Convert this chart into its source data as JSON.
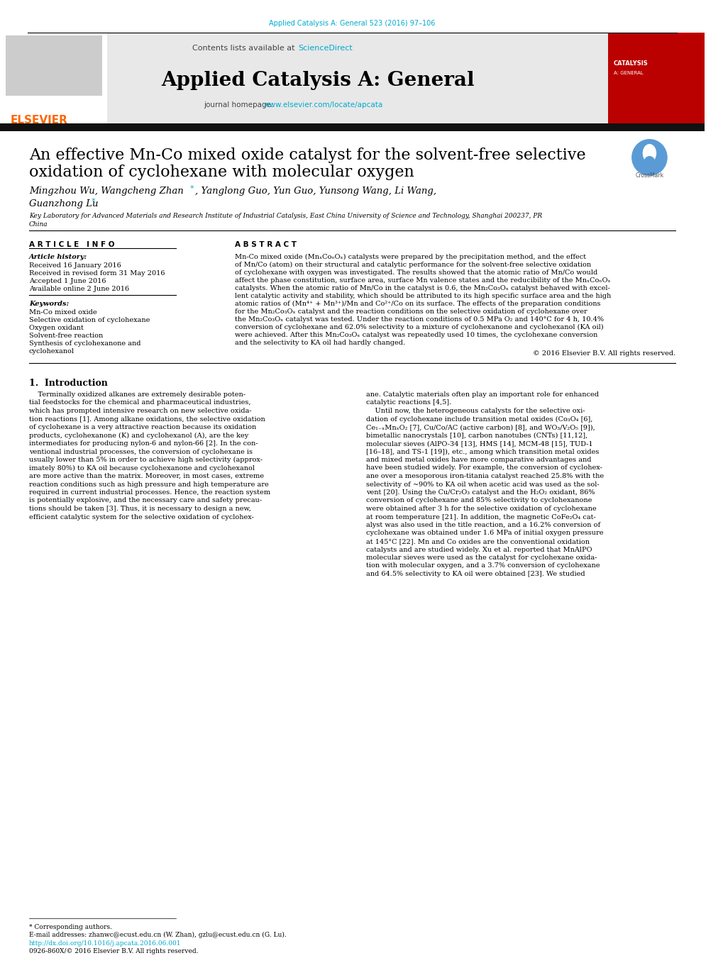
{
  "page_bg": "#ffffff",
  "top_citation": "Applied Catalysis A: General 523 (2016) 97–106",
  "top_citation_color": "#00aacc",
  "header_bg": "#e8e8e8",
  "header_text": "Contents lists available at ",
  "header_sciencedirect": "ScienceDirect",
  "header_sciencedirect_color": "#00aacc",
  "journal_title": "Applied Catalysis A: General",
  "journal_homepage_text": "journal homepage: ",
  "journal_homepage_url": "www.elsevier.com/locate/apcata",
  "journal_homepage_url_color": "#00aacc",
  "elsevier_color": "#ff6600",
  "separator_color": "#1a1a1a",
  "article_title_line1": "An effective Mn-Co mixed oxide catalyst for the solvent-free selective",
  "article_title_line2": "oxidation of cyclohexane with molecular oxygen",
  "authors_part1": "Mingzhou Wu, Wangcheng Zhan",
  "authors_part2": ", Yanglong Guo, Yun Guo, Yunsong Wang, Li Wang,",
  "authors_part3": "Guanzhong Lu",
  "affiliation_line1": "Key Laboratory for Advanced Materials and Research Institute of Industrial Catalysis, East China University of Science and Technology, Shanghai 200237, PR",
  "affiliation_line2": "China",
  "article_info_header": "A R T I C L E   I N F O",
  "abstract_header": "A B S T R A C T",
  "article_history_label": "Article history:",
  "received": "Received 16 January 2016",
  "revised": "Received in revised form 31 May 2016",
  "accepted": "Accepted 1 June 2016",
  "available": "Available online 2 June 2016",
  "keywords_label": "Keywords:",
  "keyword1": "Mn-Co mixed oxide",
  "keyword2": "Selective oxidation of cyclohexane",
  "keyword3": "Oxygen oxidant",
  "keyword4": "Solvent-free reaction",
  "keyword5": "Synthesis of cyclohexanone and",
  "keyword6": "cyclohexanol",
  "abstract_lines": [
    "Mn-Co mixed oxide (MnₓCoₙOₓ) catalysts were prepared by the precipitation method, and the effect",
    "of Mn/Co (atom) on their structural and catalytic performance for the solvent-free selective oxidation",
    "of cyclohexane with oxygen was investigated. The results showed that the atomic ratio of Mn/Co would",
    "affect the phase constitution, surface area, surface Mn valence states and the reducibility of the MnₓCoₙOₓ",
    "catalysts. When the atomic ratio of Mn/Co in the catalyst is 0.6, the Mn₂Co₃Oₓ catalyst behaved with excel-",
    "lent catalytic activity and stability, which should be attributed to its high specific surface area and the high",
    "atomic ratios of (Mn⁴⁺ + Mn³⁺)/Mn and Co²⁺/Co on its surface. The effects of the preparation conditions",
    "for the Mn₂Co₃Oₓ catalyst and the reaction conditions on the selective oxidation of cyclohexane over",
    "the Mn₂Co₃Oₓ catalyst was tested. Under the reaction conditions of 0.5 MPa O₂ and 140°C for 4 h, 10.4%",
    "conversion of cyclohexane and 62.0% selectivity to a mixture of cyclohexanone and cyclohexanol (KA oil)",
    "were achieved. After this Mn₂Co₃Oₓ catalyst was repeatedly used 10 times, the cyclohexane conversion",
    "and the selectivity to KA oil had hardly changed."
  ],
  "copyright": "© 2016 Elsevier B.V. All rights reserved.",
  "intro_header": "1.  Introduction",
  "intro_col1_lines": [
    "    Terminally oxidized alkanes are extremely desirable poten-",
    "tial feedstocks for the chemical and pharmaceutical industries,",
    "which has prompted intensive research on new selective oxida-",
    "tion reactions [1]. Among alkane oxidations, the selective oxidation",
    "of cyclohexane is a very attractive reaction because its oxidation",
    "products, cyclohexanone (K) and cyclohexanol (A), are the key",
    "intermediates for producing nylon-6 and nylon-66 [2]. In the con-",
    "ventional industrial processes, the conversion of cyclohexane is",
    "usually lower than 5% in order to achieve high selectivity (approx-",
    "imately 80%) to KA oil because cyclohexanone and cyclohexanol",
    "are more active than the matrix. Moreover, in most cases, extreme",
    "reaction conditions such as high pressure and high temperature are",
    "required in current industrial processes. Hence, the reaction system",
    "is potentially explosive, and the necessary care and safety precau-",
    "tions should be taken [3]. Thus, it is necessary to design a new,",
    "efficient catalytic system for the selective oxidation of cyclohex-"
  ],
  "intro_col2_lines": [
    "ane. Catalytic materials often play an important role for enhanced",
    "catalytic reactions [4,5].",
    "    Until now, the heterogeneous catalysts for the selective oxi-",
    "dation of cyclohexane include transition metal oxides (Co₃O₄ [6],",
    "Ce₁₋ₓMnₓO₂ [7], Cu/Co/AC (active carbon) [8], and WO₃/V₂O₅ [9]),",
    "bimetallic nanocrystals [10], carbon nanotubes (CNTs) [11,12],",
    "molecular sieves (AlPO-34 [13], HMS [14], MCM-48 [15], TUD-1",
    "[16–18], and TS-1 [19]), etc., among which transition metal oxides",
    "and mixed metal oxides have more comparative advantages and",
    "have been studied widely. For example, the conversion of cyclohex-",
    "ane over a mesoporous iron-titania catalyst reached 25.8% with the",
    "selectivity of ~90% to KA oil when acetic acid was used as the sol-",
    "vent [20]. Using the Cu/Cr₂O₃ catalyst and the H₂O₂ oxidant, 86%",
    "conversion of cyclohexane and 85% selectivity to cyclohexanone",
    "were obtained after 3 h for the selective oxidation of cyclohexane",
    "at room temperature [21]. In addition, the magnetic CoFe₂O₄ cat-",
    "alyst was also used in the title reaction, and a 16.2% conversion of",
    "cyclohexane was obtained under 1.6 MPa of initial oxygen pressure",
    "at 145°C [22]. Mn and Co oxides are the conventional oxidation",
    "catalysts and are studied widely. Xu et al. reported that MnAlPO",
    "molecular sieves were used as the catalyst for cyclohexane oxida-",
    "tion with molecular oxygen, and a 3.7% conversion of cyclohexane",
    "and 64.5% selectivity to KA oil were obtained [23]. We studied"
  ],
  "footer_corresponding": "* Corresponding authors.",
  "footer_email": "E-mail addresses: zhanwc@ecust.edu.cn (W. Zhan), gzlu@ecust.edu.cn (G. Lu).",
  "footer_doi": "http://dx.doi.org/10.1016/j.apcata.2016.06.001",
  "footer_issn": "0926-860X/© 2016 Elsevier B.V. All rights reserved."
}
